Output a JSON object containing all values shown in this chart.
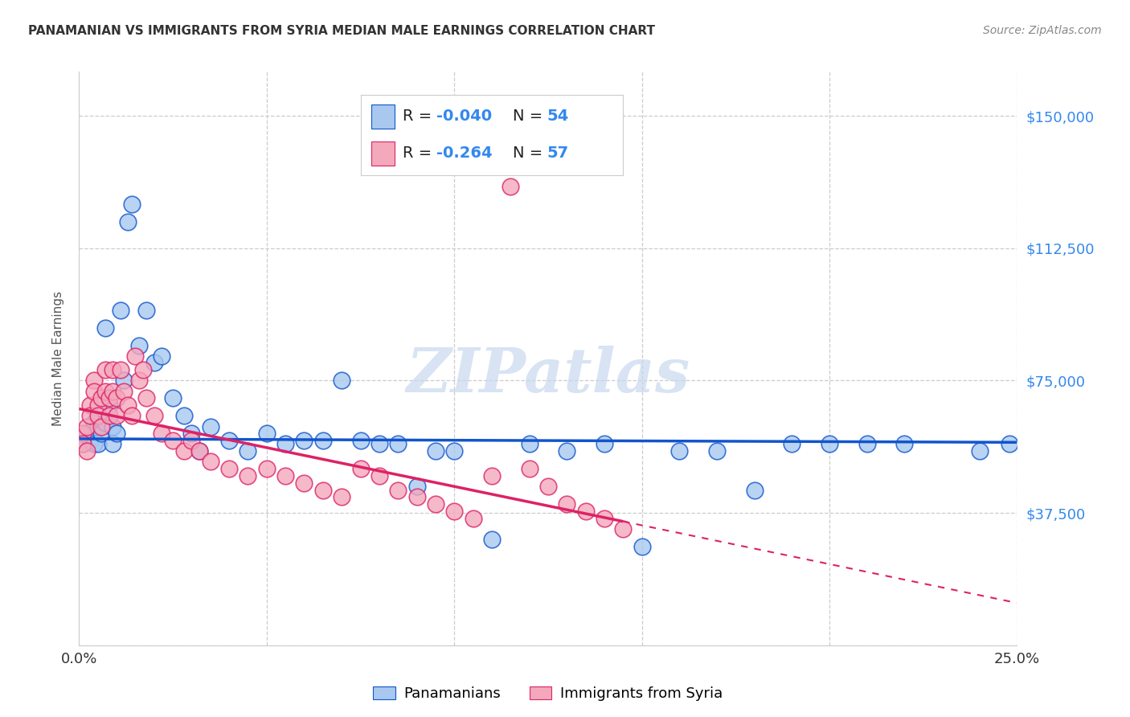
{
  "title": "PANAMANIAN VS IMMIGRANTS FROM SYRIA MEDIAN MALE EARNINGS CORRELATION CHART",
  "source": "Source: ZipAtlas.com",
  "ylabel": "Median Male Earnings",
  "xlim": [
    0.0,
    0.25
  ],
  "ylim": [
    0,
    162500
  ],
  "ytick_vals": [
    0,
    37500,
    75000,
    112500,
    150000
  ],
  "ytick_labels": [
    "",
    "$37,500",
    "$75,000",
    "$112,500",
    "$150,000"
  ],
  "xtick_vals": [
    0.0,
    0.05,
    0.1,
    0.15,
    0.2,
    0.25
  ],
  "xtick_labels": [
    "0.0%",
    "",
    "",
    "",
    "",
    "25.0%"
  ],
  "blue_color": "#A8C8F0",
  "pink_color": "#F4A8BC",
  "blue_line_color": "#1155CC",
  "pink_line_color": "#DD2266",
  "right_tick_color": "#3388EE",
  "watermark_color": "#C8D8EE",
  "watermark": "ZIPatlas",
  "blue_R": -0.04,
  "blue_N": 54,
  "pink_R": -0.264,
  "pink_N": 57,
  "blue_intercept": 58500,
  "blue_slope": -4000,
  "pink_intercept": 67000,
  "pink_slope": -220000,
  "blue_x": [
    0.001,
    0.002,
    0.003,
    0.004,
    0.004,
    0.005,
    0.005,
    0.006,
    0.007,
    0.007,
    0.008,
    0.009,
    0.009,
    0.01,
    0.011,
    0.012,
    0.013,
    0.014,
    0.016,
    0.018,
    0.02,
    0.022,
    0.025,
    0.028,
    0.03,
    0.032,
    0.035,
    0.04,
    0.045,
    0.05,
    0.055,
    0.06,
    0.065,
    0.07,
    0.075,
    0.08,
    0.085,
    0.09,
    0.095,
    0.1,
    0.11,
    0.12,
    0.13,
    0.14,
    0.15,
    0.16,
    0.17,
    0.18,
    0.19,
    0.2,
    0.21,
    0.22,
    0.24,
    0.248
  ],
  "blue_y": [
    57000,
    60000,
    58000,
    63000,
    57000,
    62000,
    57000,
    60000,
    90000,
    63000,
    68000,
    62000,
    57000,
    60000,
    95000,
    75000,
    120000,
    125000,
    85000,
    95000,
    80000,
    82000,
    70000,
    65000,
    60000,
    55000,
    62000,
    58000,
    55000,
    60000,
    57000,
    58000,
    58000,
    75000,
    58000,
    57000,
    57000,
    45000,
    55000,
    55000,
    30000,
    57000,
    55000,
    57000,
    28000,
    55000,
    55000,
    44000,
    57000,
    57000,
    57000,
    57000,
    55000,
    57000
  ],
  "pink_x": [
    0.001,
    0.001,
    0.002,
    0.002,
    0.003,
    0.003,
    0.004,
    0.004,
    0.005,
    0.005,
    0.006,
    0.006,
    0.007,
    0.007,
    0.008,
    0.008,
    0.009,
    0.009,
    0.01,
    0.01,
    0.011,
    0.012,
    0.013,
    0.014,
    0.015,
    0.016,
    0.017,
    0.018,
    0.02,
    0.022,
    0.025,
    0.028,
    0.03,
    0.032,
    0.035,
    0.04,
    0.045,
    0.05,
    0.055,
    0.06,
    0.065,
    0.07,
    0.075,
    0.08,
    0.085,
    0.09,
    0.095,
    0.1,
    0.105,
    0.11,
    0.115,
    0.12,
    0.125,
    0.13,
    0.135,
    0.14,
    0.145
  ],
  "pink_y": [
    60000,
    57000,
    62000,
    55000,
    68000,
    65000,
    75000,
    72000,
    68000,
    65000,
    70000,
    62000,
    78000,
    72000,
    70000,
    65000,
    78000,
    72000,
    70000,
    65000,
    78000,
    72000,
    68000,
    65000,
    82000,
    75000,
    78000,
    70000,
    65000,
    60000,
    58000,
    55000,
    58000,
    55000,
    52000,
    50000,
    48000,
    50000,
    48000,
    46000,
    44000,
    42000,
    50000,
    48000,
    44000,
    42000,
    40000,
    38000,
    36000,
    48000,
    130000,
    50000,
    45000,
    40000,
    38000,
    36000,
    33000
  ]
}
